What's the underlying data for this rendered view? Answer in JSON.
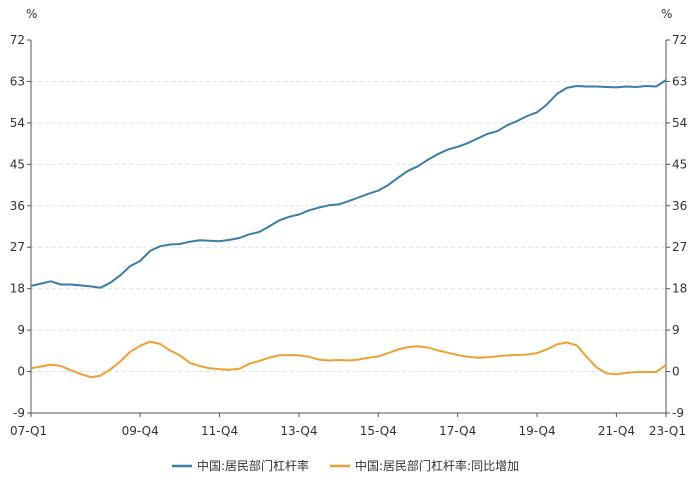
{
  "chart_data": {
    "type": "line",
    "y_unit_left": "%",
    "y_unit_right": "%",
    "ylim": [
      -9,
      72
    ],
    "y_ticks": [
      "72",
      "63",
      "54",
      "45",
      "36",
      "27",
      "18",
      "9",
      "0",
      "-9"
    ],
    "x_tick_labels": [
      "07-Q1",
      "09-Q4",
      "11-Q4",
      "13-Q4",
      "15-Q4",
      "17-Q4",
      "19-Q4",
      "21-Q4",
      "23-Q1"
    ],
    "x_tick_index": [
      0,
      11,
      19,
      27,
      35,
      43,
      51,
      59,
      64
    ],
    "grid": true,
    "legend_position": "bottom",
    "colors": {
      "series1": "#3a7ea6",
      "series2": "#f0a030",
      "axis": "#555555",
      "grid": "#e3e3e3"
    },
    "series": [
      {
        "name": "中国:居民部门杠杆率",
        "values": [
          18.6,
          19.1,
          19.6,
          18.9,
          18.9,
          18.7,
          18.5,
          18.2,
          19.3,
          20.9,
          22.9,
          24.0,
          26.2,
          27.2,
          27.6,
          27.7,
          28.2,
          28.5,
          28.4,
          28.3,
          28.6,
          29.0,
          29.8,
          30.3,
          31.5,
          32.8,
          33.6,
          34.1,
          35.0,
          35.6,
          36.1,
          36.3,
          37.0,
          37.8,
          38.6,
          39.3,
          40.5,
          42.1,
          43.6,
          44.6,
          46.0,
          47.2,
          48.2,
          48.8,
          49.6,
          50.6,
          51.6,
          52.2,
          53.5,
          54.4,
          55.5,
          56.3,
          58.0,
          60.3,
          61.6,
          62.0,
          61.9,
          61.9,
          61.8,
          61.7,
          61.9,
          61.8,
          62.0,
          61.9,
          63.3
        ]
      },
      {
        "name": "中国:居民部门杠杆率:同比增加",
        "values": [
          0.7,
          1.1,
          1.5,
          1.2,
          0.3,
          -0.5,
          -1.2,
          -0.9,
          0.5,
          2.2,
          4.3,
          5.6,
          6.5,
          6.0,
          4.6,
          3.5,
          1.9,
          1.2,
          0.7,
          0.5,
          0.4,
          0.6,
          1.7,
          2.3,
          3.0,
          3.5,
          3.6,
          3.5,
          3.2,
          2.6,
          2.4,
          2.5,
          2.4,
          2.6,
          3.0,
          3.3,
          4.0,
          4.8,
          5.3,
          5.5,
          5.2,
          4.6,
          4.1,
          3.6,
          3.2,
          3.0,
          3.1,
          3.3,
          3.5,
          3.6,
          3.7,
          4.0,
          4.8,
          5.9,
          6.3,
          5.7,
          3.2,
          0.9,
          -0.4,
          -0.6,
          -0.3,
          -0.1,
          -0.1,
          -0.1,
          1.4
        ]
      }
    ]
  }
}
